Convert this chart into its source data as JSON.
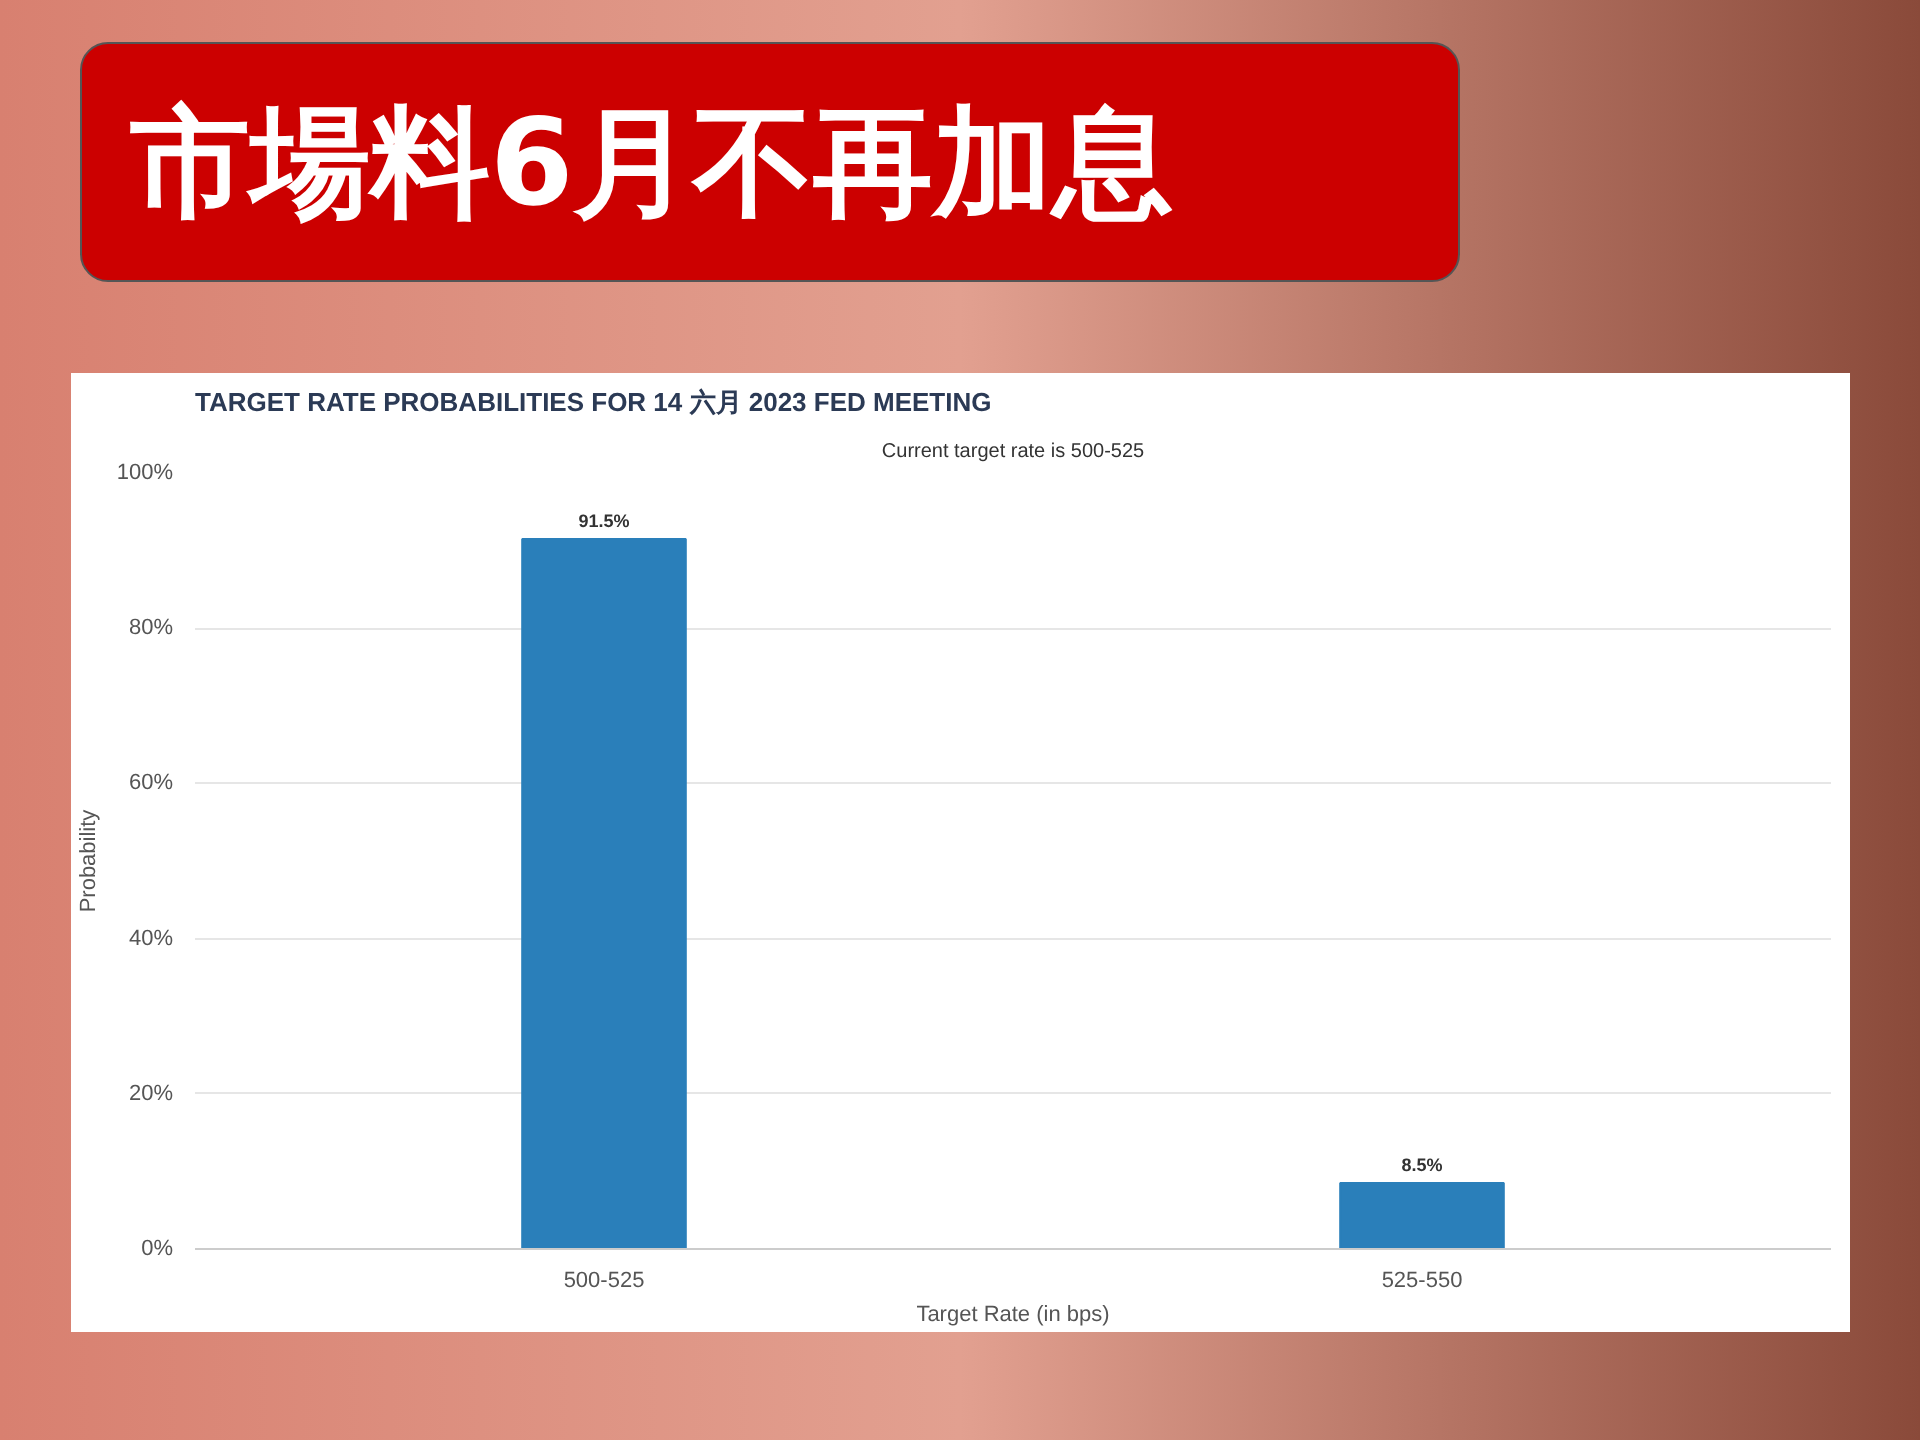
{
  "chart_data": {
    "type": "bar",
    "title": "市場料6月不再加息",
    "subtitle": "TARGET RATE PROBABILITIES FOR 14 六月 2023 FED MEETING",
    "annotations": [
      "Current target rate is 500-525"
    ],
    "xlabel": "Target Rate (in bps)",
    "ylabel": "Probability",
    "categories": [
      "500-525",
      "525-550"
    ],
    "values": [
      91.5,
      8.5
    ],
    "color": "#2a7fba",
    "value_labels": [
      "91.5%",
      "8.5%"
    ],
    "ylim": [
      0,
      100
    ],
    "yticks": [
      {
        "value": 0,
        "label": "0%"
      },
      {
        "value": 20,
        "label": "20%"
      },
      {
        "value": 40,
        "label": "40%"
      },
      {
        "value": 60,
        "label": "60%"
      },
      {
        "value": 80,
        "label": "80%"
      },
      {
        "value": 100,
        "label": "100%"
      }
    ],
    "grid": "y"
  }
}
